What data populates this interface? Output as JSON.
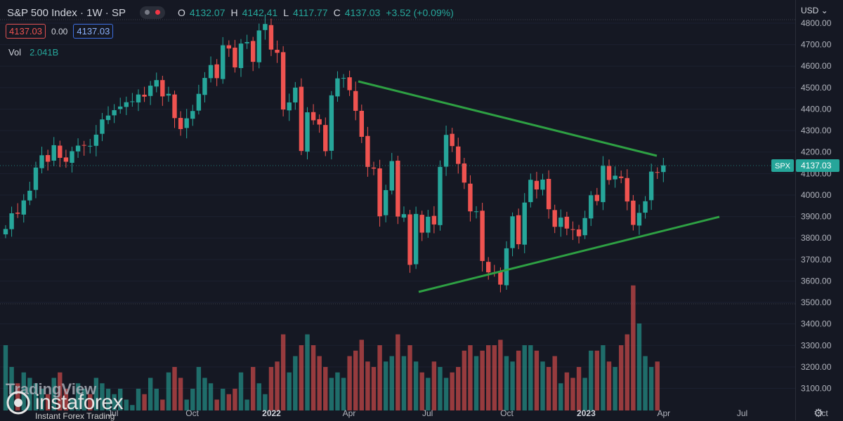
{
  "header": {
    "symbol": "S&P 500 Index · 1W · SP",
    "open_label": "O",
    "open": "4132.07",
    "high_label": "H",
    "high": "4142.41",
    "low_label": "L",
    "low": "4117.77",
    "close_label": "C",
    "close": "4137.03",
    "change": "+3.52 (+0.09%)",
    "bid": "4137.03",
    "spread": "0.00",
    "ask": "4137.03",
    "volume_label": "Vol",
    "volume": "2.041B",
    "currency": "USD"
  },
  "logo": {
    "tradingview": "TradingView",
    "brand": "instaforex",
    "tagline": "Instant Forex Trading"
  },
  "colors": {
    "up": "#26a69a",
    "down": "#ef5350",
    "trendline": "#2ea043",
    "background": "#151823",
    "price_tag": "#26a69a"
  },
  "chart_data": {
    "type": "candlestick",
    "ticker_tag": "SPX",
    "last_price": 4137.03,
    "last_price_label": "4137.03",
    "y_ticks": [
      "4800.00",
      "4700.00",
      "4600.00",
      "4500.00",
      "4400.00",
      "4300.00",
      "4200.00",
      "4100.00",
      "4000.00",
      "3900.00",
      "3800.00",
      "3700.00",
      "3600.00",
      "3500.00",
      "3400.00",
      "3300.00",
      "3200.00",
      "3100.00"
    ],
    "y_tick_values": [
      4800,
      4700,
      4600,
      4500,
      4400,
      4300,
      4200,
      4100,
      4000,
      3900,
      3800,
      3700,
      3600,
      3500,
      3400,
      3300,
      3200,
      3100
    ],
    "x_ticks": [
      "Jul",
      "Oct",
      "2022",
      "Apr",
      "Jul",
      "Oct",
      "2023",
      "Apr",
      "Jul",
      "Oct"
    ],
    "x_tick_dates": [
      "2021-07-01",
      "2021-10-01",
      "2022-01-01",
      "2022-04-01",
      "2022-07-01",
      "2022-10-01",
      "2023-01-01",
      "2023-04-01",
      "2023-07-01",
      "2023-10-01"
    ],
    "start_date": "2021-03-01",
    "closes": [
      3842,
      3915,
      3913,
      3975,
      4020,
      4128,
      4185,
      4155,
      4232,
      4173,
      4155,
      4204,
      4230,
      4230,
      4229,
      4281,
      4352,
      4370,
      4395,
      4412,
      4432,
      4436,
      4468,
      4458,
      4509,
      4535,
      4459,
      4471,
      4358,
      4307,
      4357,
      4391,
      4471,
      4545,
      4605,
      4544,
      4697,
      4682,
      4594,
      4705,
      4712,
      4620,
      4766,
      4796,
      4677,
      4662,
      4398,
      4431,
      4500,
      4205,
      4385,
      4348,
      4328,
      4204,
      4464,
      4543,
      4545,
      4488,
      4392,
      4271,
      4131,
      4123,
      3901,
      4023,
      4158,
      3900,
      3911,
      3675,
      3912,
      3825,
      3899,
      3863,
      4131,
      4280,
      4228,
      4145,
      4058,
      3924,
      3924,
      3693,
      3640,
      3639,
      3583,
      3752,
      3901,
      3771,
      3965,
      4071,
      4026,
      4072,
      3934,
      3852,
      3895,
      3844,
      3839,
      3808,
      3893,
      3999,
      3972,
      4136,
      4070,
      4090,
      4079,
      3970,
      3861,
      3917,
      3971,
      4109,
      4105,
      4138
    ],
    "volumes": [
      3.6,
      3.4,
      3.25,
      3.35,
      3.3,
      3.25,
      3.2,
      3.15,
      3.3,
      3.35,
      3.2,
      3.1,
      3.25,
      3.2,
      3.15,
      3.3,
      3.25,
      3.2,
      3.15,
      3.2,
      3.1,
      3.05,
      3.2,
      3.15,
      3.3,
      3.2,
      3.1,
      3.35,
      3.4,
      3.3,
      3.1,
      3.2,
      3.4,
      3.3,
      3.25,
      3.1,
      3.2,
      3.15,
      3.2,
      3.35,
      3.1,
      3.4,
      3.25,
      3.15,
      3.4,
      3.45,
      3.7,
      3.35,
      3.5,
      3.6,
      3.7,
      3.6,
      3.5,
      3.4,
      3.3,
      3.35,
      3.3,
      3.5,
      3.55,
      3.65,
      3.45,
      3.4,
      3.6,
      3.45,
      3.5,
      3.7,
      3.5,
      3.6,
      3.45,
      3.35,
      3.3,
      3.45,
      3.4,
      3.3,
      3.35,
      3.4,
      3.55,
      3.6,
      3.5,
      3.55,
      3.6,
      3.6,
      3.65,
      3.5,
      3.45,
      3.55,
      3.6,
      3.6,
      3.55,
      3.45,
      3.4,
      3.5,
      3.25,
      3.35,
      3.3,
      3.4,
      3.3,
      3.55,
      3.55,
      3.6,
      3.45,
      3.4,
      3.6,
      3.7,
      4.15,
      3.8,
      3.5,
      3.4,
      3.45,
      3.0
    ]
  }
}
